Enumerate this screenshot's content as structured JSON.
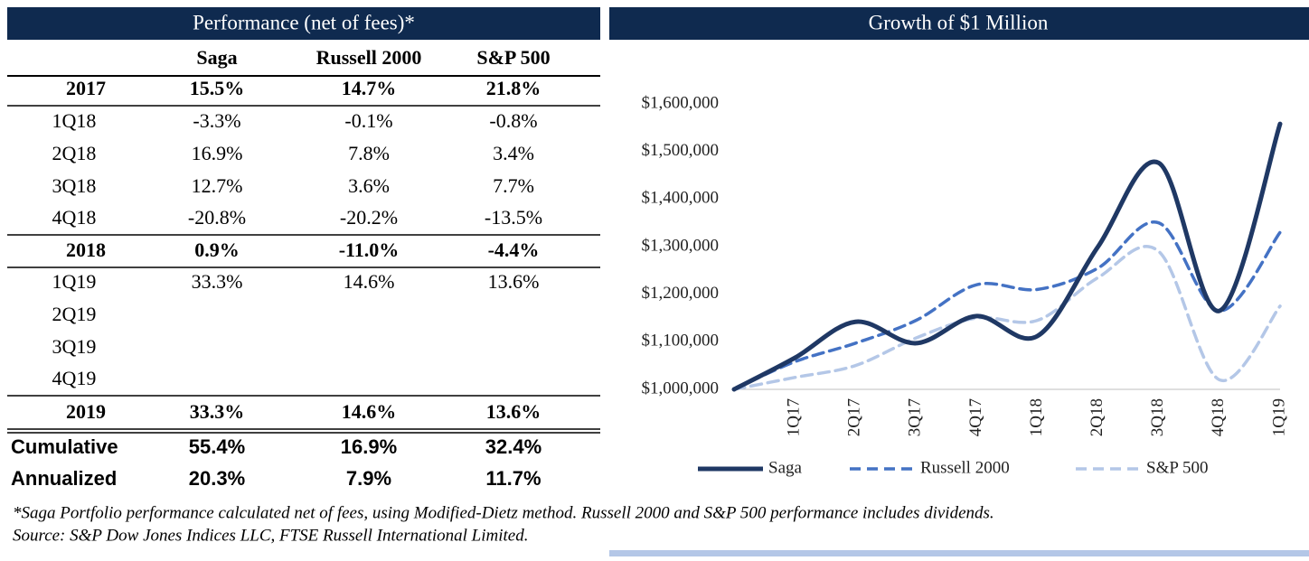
{
  "table": {
    "title": "Performance (net of fees)*",
    "columns": [
      "Saga",
      "Russell 2000",
      "S&P 500"
    ],
    "rows": [
      {
        "label": "2017",
        "values": [
          "15.5%",
          "14.7%",
          "21.8%"
        ]
      },
      {
        "label": "1Q18",
        "values": [
          "-3.3%",
          "-0.1%",
          "-0.8%"
        ]
      },
      {
        "label": "2Q18",
        "values": [
          "16.9%",
          "7.8%",
          "3.4%"
        ]
      },
      {
        "label": "3Q18",
        "values": [
          "12.7%",
          "3.6%",
          "7.7%"
        ]
      },
      {
        "label": "4Q18",
        "values": [
          "-20.8%",
          "-20.2%",
          "-13.5%"
        ]
      },
      {
        "label": "2018",
        "values": [
          "0.9%",
          "-11.0%",
          "-4.4%"
        ]
      },
      {
        "label": "1Q19",
        "values": [
          "33.3%",
          "14.6%",
          "13.6%"
        ]
      },
      {
        "label": "2Q19"
      },
      {
        "label": "3Q19"
      },
      {
        "label": "4Q19"
      },
      {
        "label": "2019",
        "values": [
          "33.3%",
          "14.6%",
          "13.6%"
        ]
      },
      {
        "label": "Cumulative",
        "values": [
          "55.4%",
          "16.9%",
          "32.4%"
        ]
      },
      {
        "label": "Annualized",
        "values": [
          "20.3%",
          "7.9%",
          "11.7%"
        ]
      }
    ]
  },
  "chart_data": {
    "type": "line",
    "title": "Growth of $1 Million",
    "categories": [
      null,
      "1Q17",
      "2Q17",
      "3Q17",
      "4Q17",
      "1Q18",
      "2Q18",
      "3Q18",
      "4Q18",
      "1Q19"
    ],
    "series": [
      {
        "name": "Saga",
        "color": "#1f3864",
        "values": [
          1000000,
          1066000,
          1142000,
          1097000,
          1154000,
          1112000,
          1300000,
          1476000,
          1165000,
          1558000
        ]
      },
      {
        "name": "Russell 2000",
        "color": "#4472c4",
        "values": [
          1000000,
          1058000,
          1097000,
          1145000,
          1220000,
          1210000,
          1255000,
          1350000,
          1165000,
          1330000
        ]
      },
      {
        "name": "S&P 500",
        "color": "#b4c7e7",
        "values": [
          1000000,
          1025000,
          1050000,
          1108000,
          1150000,
          1145000,
          1235000,
          1290000,
          1020000,
          1175000
        ]
      }
    ],
    "ylim": [
      1000000,
      1600000
    ],
    "yticks": [
      {
        "value": 1000000,
        "label": "$1,000,000"
      },
      {
        "value": 1100000,
        "label": "$1,100,000"
      },
      {
        "value": 1200000,
        "label": "$1,200,000"
      },
      {
        "value": 1300000,
        "label": "$1,300,000"
      },
      {
        "value": 1400000,
        "label": "$1,400,000"
      },
      {
        "value": 1500000,
        "label": "$1,500,000"
      },
      {
        "value": 1600000,
        "label": "$1,600,000"
      }
    ],
    "legend": "bottom"
  },
  "footnote": [
    "*Saga Portfolio performance calculated net of fees, using Modified-Dietz method. Russell 2000 and S&P 500 performance includes dividends.",
    "Source: S&P Dow Jones Indices LLC, FTSE Russell International Limited."
  ]
}
